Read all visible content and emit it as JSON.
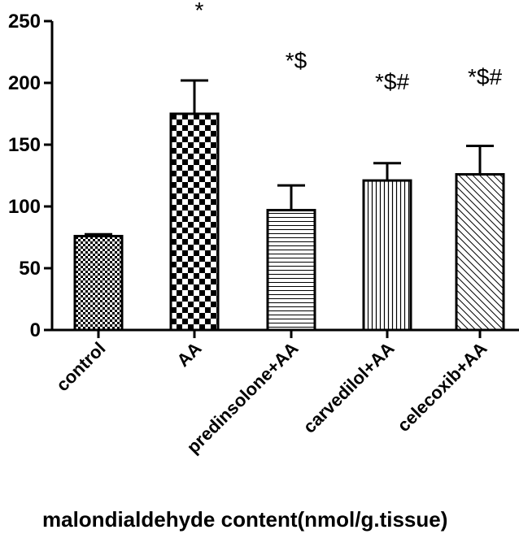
{
  "chart_data": {
    "type": "bar",
    "title": "",
    "xlabel": "malondialdehyde content(nmol/g.tissue)",
    "ylabel": "",
    "ylim": [
      0,
      250
    ],
    "yticks": [
      "0",
      "50",
      "100",
      "150",
      "200",
      "250"
    ],
    "categories": [
      "control",
      "AA",
      "predinsolone+AA",
      "carvedilol+AA",
      "celecoxib+AA"
    ],
    "values": [
      76,
      175,
      97,
      121,
      126
    ],
    "errors": [
      1.5,
      27,
      20,
      14,
      23
    ],
    "annotations": [
      "",
      "*",
      "*$",
      "*$#",
      "*$#"
    ],
    "patterns": [
      "small-checker",
      "large-checker",
      "horizontal-lines",
      "vertical-lines",
      "diagonal-lines"
    ],
    "bar_fill": "#ffffff",
    "bar_stroke": "#000000",
    "error_bars": "upper",
    "grid": false,
    "legend": "none"
  }
}
